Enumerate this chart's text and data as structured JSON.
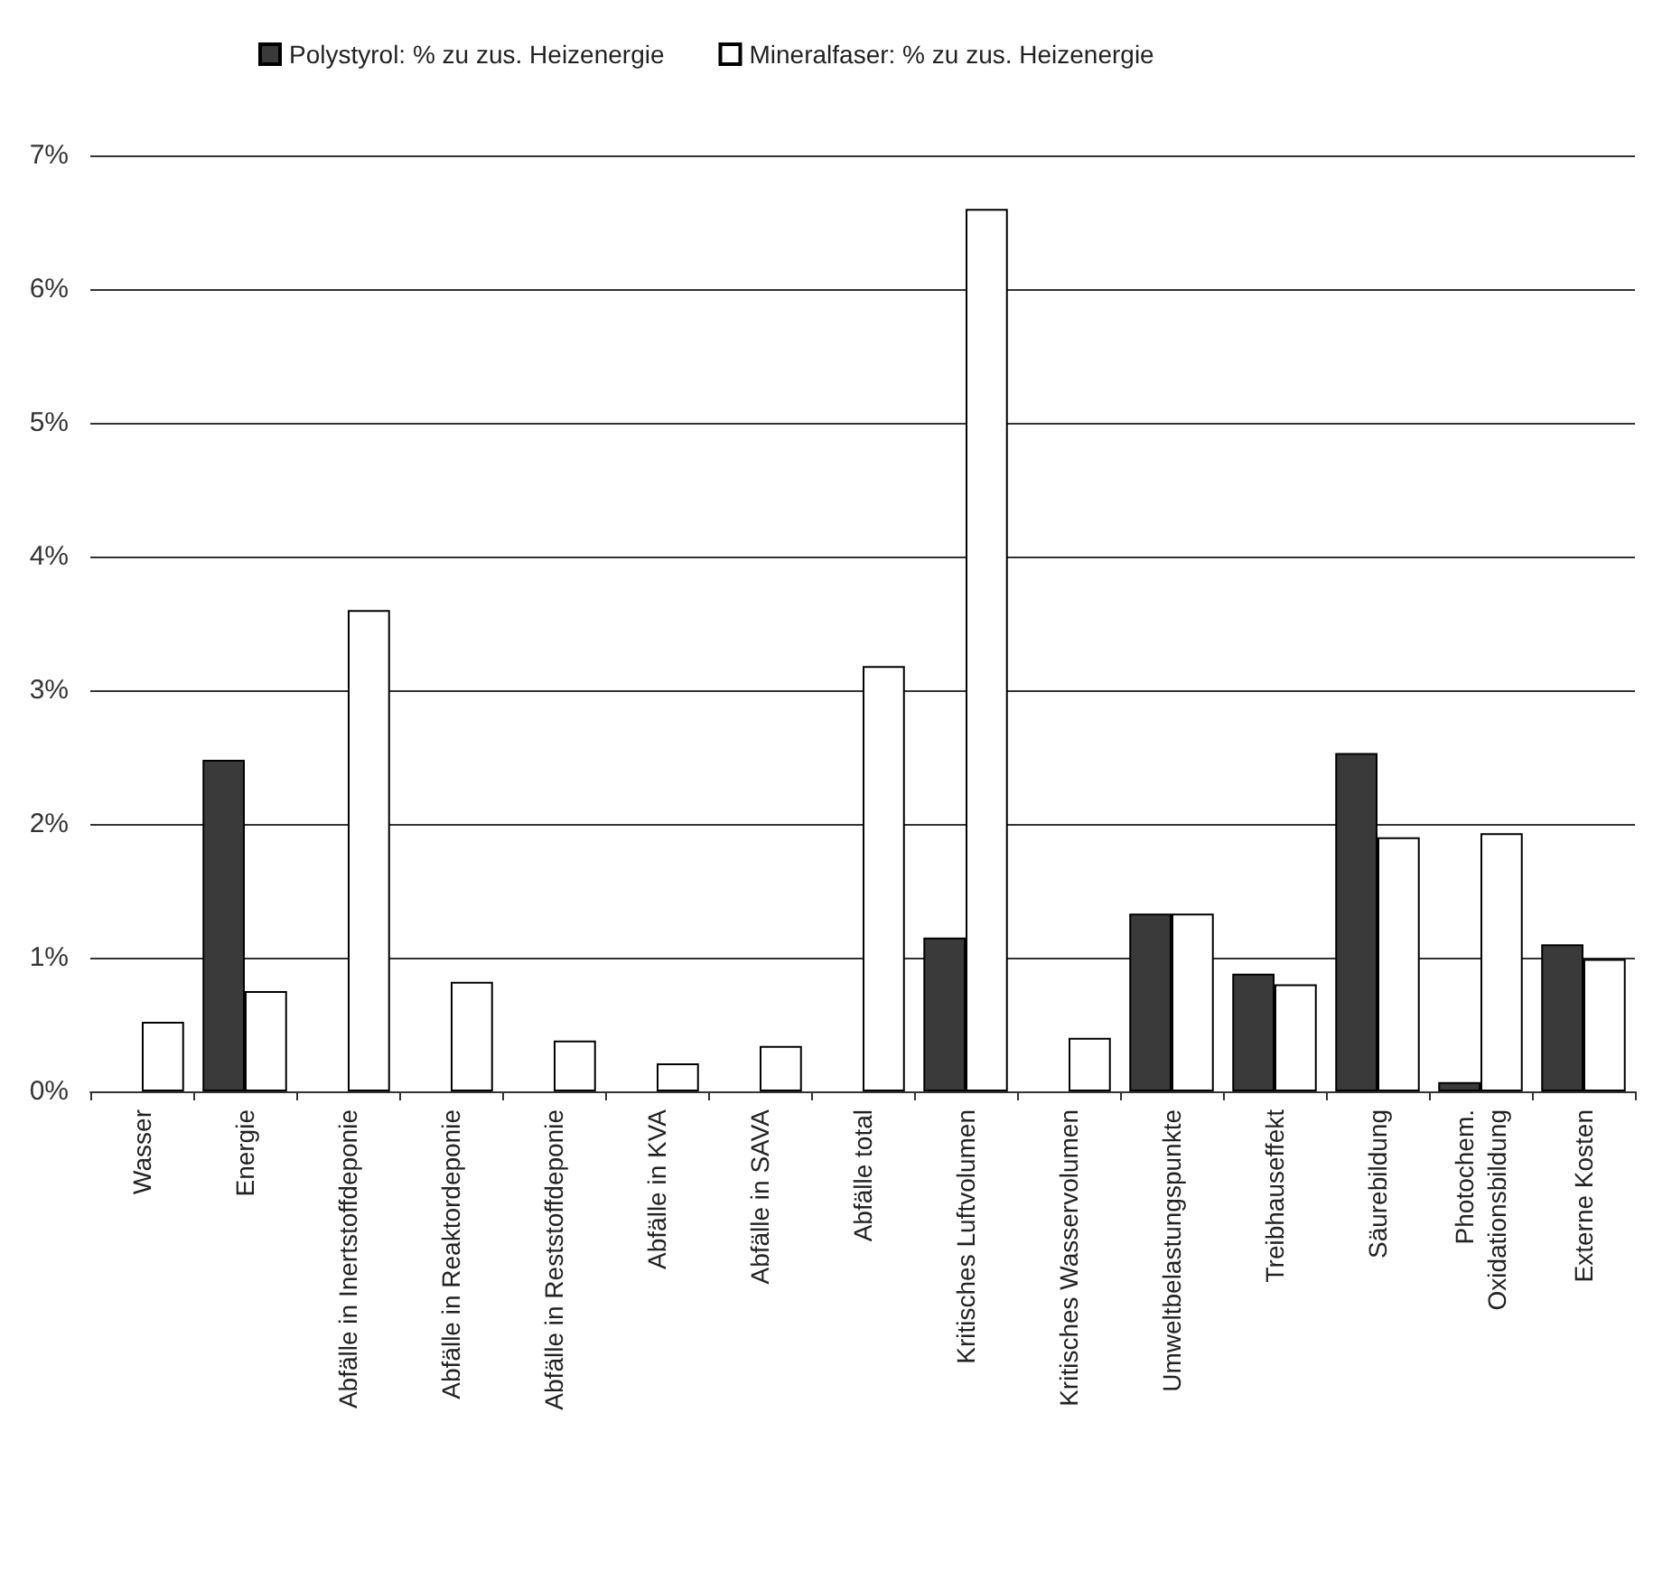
{
  "chart_data": {
    "type": "bar",
    "categories": [
      "Wasser",
      "Energie",
      "Abfälle in Inertstoffdeponie",
      "Abfälle in Reaktordeponie",
      "Abfälle in Reststoffdeponie",
      "Abfälle in KVA",
      "Abfälle in SAVA",
      "Abfälle total",
      "Kritisches Luftvolumen",
      "Kritisches Wasservolumen",
      "Umweltbelastungspunkte",
      "Treibhauseffekt",
      "Säurebildung",
      "Photochem.\nOxidationsbildung",
      "Externe Kosten"
    ],
    "series": [
      {
        "name": "Polystyrol: % zu zus. Heizenergie",
        "color": "#3a3a3a",
        "values": [
          null,
          2.48,
          null,
          null,
          null,
          null,
          null,
          null,
          1.15,
          null,
          1.33,
          0.88,
          2.53,
          0.07,
          1.1
        ]
      },
      {
        "name": "Mineralfaser: % zu zus. Heizenergie",
        "color": "#ffffff",
        "values": [
          0.52,
          0.75,
          3.6,
          0.82,
          0.38,
          0.21,
          0.34,
          3.18,
          6.6,
          0.4,
          1.33,
          0.8,
          1.9,
          1.93,
          0.99
        ]
      }
    ],
    "ylim": [
      0,
      7
    ],
    "yticks": [
      {
        "value": 0,
        "label": "0%"
      },
      {
        "value": 1,
        "label": "1%"
      },
      {
        "value": 2,
        "label": "2%"
      },
      {
        "value": 3,
        "label": "3%"
      },
      {
        "value": 4,
        "label": "4%"
      },
      {
        "value": 5,
        "label": "5%"
      },
      {
        "value": 6,
        "label": "6%"
      },
      {
        "value": 7,
        "label": "7%"
      }
    ],
    "grid": "y",
    "legend": "top left"
  }
}
